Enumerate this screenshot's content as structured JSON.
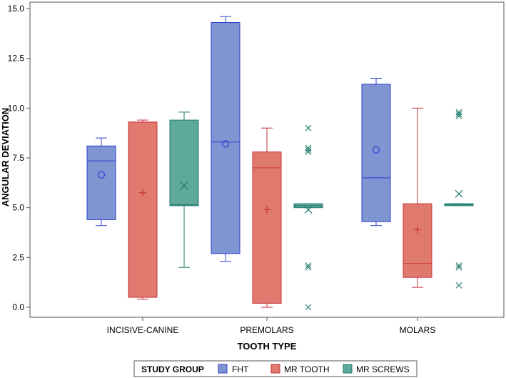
{
  "chart_data": {
    "type": "box",
    "xlabel": "TOOTH TYPE",
    "ylabel": "ANGULAR DEVIATION",
    "ylim": [
      0,
      15
    ],
    "yticks": [
      "0.0",
      "2.5",
      "5.0",
      "7.5",
      "10.0",
      "12.5",
      "15.0"
    ],
    "ytick_values": [
      0,
      2.5,
      5,
      7.5,
      10,
      12.5,
      15
    ],
    "categories": [
      "INCISIVE-CANINE",
      "PREMOLARS",
      "MOLARS"
    ],
    "legend": {
      "title": "STUDY GROUP",
      "position": "bottom",
      "entries": [
        "FHT",
        "MR TOOTH",
        "MR SCREWS"
      ]
    },
    "series": [
      {
        "name": "FHT",
        "fill": "#7f95d1",
        "stroke": "#2a3fd0",
        "mean_marker": "circle",
        "boxes": [
          {
            "category": "INCISIVE-CANINE",
            "min": 4.1,
            "q1": 4.4,
            "median": 7.35,
            "q3": 8.1,
            "max": 8.5,
            "mean": 6.65,
            "outliers": []
          },
          {
            "category": "PREMOLARS",
            "min": 2.3,
            "q1": 2.7,
            "median": 8.3,
            "q3": 14.3,
            "max": 14.6,
            "mean": 8.2,
            "outliers": []
          },
          {
            "category": "MOLARS",
            "min": 4.1,
            "q1": 4.3,
            "median": 6.5,
            "q3": 11.2,
            "max": 11.5,
            "mean": 7.9,
            "outliers": []
          }
        ]
      },
      {
        "name": "MR TOOTH",
        "fill": "#e07a6e",
        "stroke": "#c8303a",
        "mean_marker": "plus",
        "boxes": [
          {
            "category": "INCISIVE-CANINE",
            "min": 0.4,
            "q1": 0.5,
            "median": 9.3,
            "q3": 9.3,
            "max": 9.4,
            "mean": 5.75,
            "outliers": []
          },
          {
            "category": "PREMOLARS",
            "min": 0.0,
            "q1": 0.2,
            "median": 7.0,
            "q3": 7.8,
            "max": 9.0,
            "mean": 4.9,
            "outliers": []
          },
          {
            "category": "MOLARS",
            "min": 1.0,
            "q1": 1.5,
            "median": 2.2,
            "q3": 5.2,
            "max": 10.0,
            "mean": 3.9,
            "outliers": []
          }
        ]
      },
      {
        "name": "MR SCREWS",
        "fill": "#5fa89c",
        "stroke": "#1f7a6e",
        "mean_marker": "x",
        "boxes": [
          {
            "category": "INCISIVE-CANINE",
            "min": 2.0,
            "q1": 5.1,
            "median": 5.15,
            "q3": 9.4,
            "max": 9.8,
            "mean": 6.1,
            "outliers": []
          },
          {
            "category": "PREMOLARS",
            "min": 5.0,
            "q1": 5.0,
            "median": 5.1,
            "q3": 5.2,
            "max": 5.2,
            "mean": 4.9,
            "outliers": [
              0.0,
              2.0,
              2.1,
              7.8,
              7.9,
              8.0,
              9.0
            ]
          },
          {
            "category": "MOLARS",
            "min": 5.1,
            "q1": 5.1,
            "median": 5.15,
            "q3": 5.2,
            "max": 5.2,
            "mean": 5.7,
            "outliers": [
              1.1,
              2.0,
              2.1,
              9.6,
              9.7,
              9.8
            ]
          }
        ]
      }
    ]
  }
}
